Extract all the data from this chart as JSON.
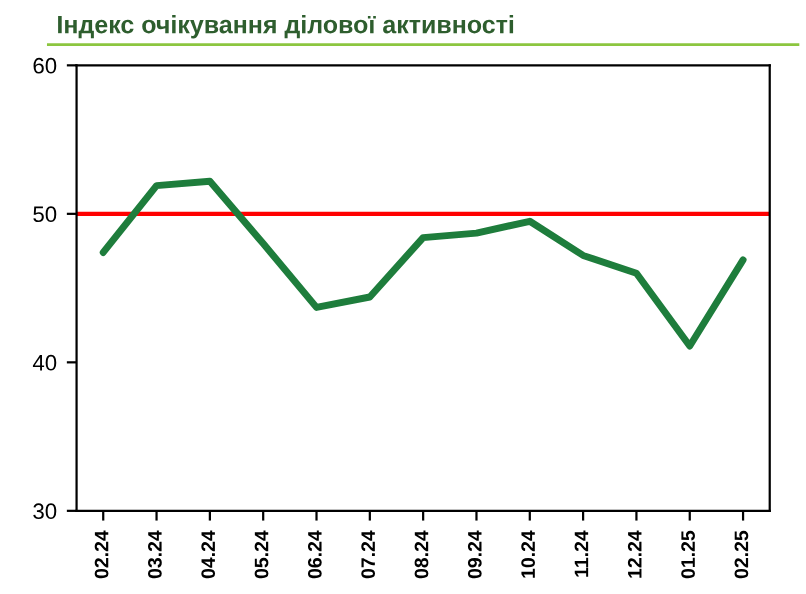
{
  "chart_data": {
    "type": "line",
    "title": "Індекс очікування ділової активності",
    "categories": [
      "02.24",
      "03.24",
      "04.24",
      "05.24",
      "06.24",
      "07.24",
      "08.24",
      "09.24",
      "10.24",
      "11.24",
      "12.24",
      "01.25",
      "02.25"
    ],
    "series": [
      {
        "color": "#1e7d3c",
        "values": [
          47.4,
          51.9,
          52.2,
          48.0,
          43.7,
          44.4,
          48.4,
          48.7,
          49.5,
          47.2,
          46.0,
          41.1,
          46.9
        ]
      }
    ],
    "ylim": [
      30,
      60
    ],
    "yticks": [
      30,
      40,
      50,
      60
    ],
    "ref_lines": [
      {
        "axis": "y",
        "value": 50,
        "color": "#ff0000"
      }
    ],
    "grid": false,
    "legend": false,
    "marker": "none",
    "line_style": "solid"
  }
}
